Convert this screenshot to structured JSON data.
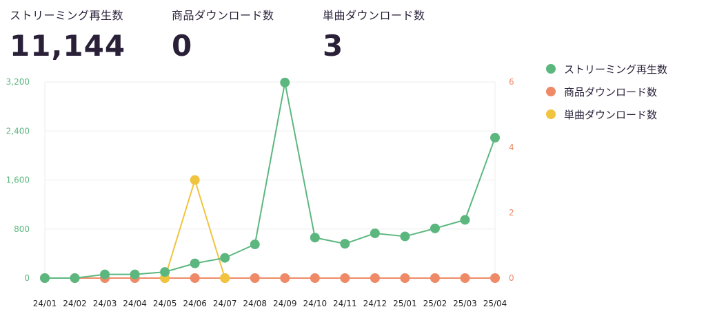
{
  "stats": [
    {
      "label": "ストリーミング再生数",
      "value": "11,144"
    },
    {
      "label": "商品ダウンロード数",
      "value": "0"
    },
    {
      "label": "単曲ダウンロード数",
      "value": "3"
    }
  ],
  "chart_data": {
    "type": "line",
    "categories": [
      "24/01",
      "24/02",
      "24/03",
      "24/04",
      "24/05",
      "24/06",
      "24/07",
      "24/08",
      "24/09",
      "24/10",
      "24/11",
      "24/12",
      "25/01",
      "25/02",
      "25/03",
      "25/04"
    ],
    "left_axis": {
      "ylim": [
        0,
        3200
      ],
      "ticks": [
        0,
        800,
        1600,
        2400,
        3200
      ],
      "tick_labels": [
        "0",
        "800",
        "1,600",
        "2,400",
        "3,200"
      ],
      "color": "#5cb77f"
    },
    "right_axis": {
      "ylim": [
        0,
        6
      ],
      "ticks": [
        0,
        2,
        4,
        6
      ],
      "tick_labels": [
        "0",
        "2",
        "4",
        "6"
      ],
      "color": "#ee8a67"
    },
    "grid": true,
    "legend_position": "right",
    "series": [
      {
        "name": "ストリーミング再生数",
        "axis": "left",
        "color": "#5cb77f",
        "values": [
          0,
          0,
          60,
          60,
          100,
          240,
          330,
          550,
          3190,
          660,
          560,
          730,
          680,
          810,
          950,
          2290
        ]
      },
      {
        "name": "商品ダウンロード数",
        "axis": "right",
        "color": "#ee8a67",
        "values": [
          0,
          0,
          0,
          0,
          0,
          0,
          0,
          0,
          0,
          0,
          0,
          0,
          0,
          0,
          0,
          0
        ]
      },
      {
        "name": "単曲ダウンロード数",
        "axis": "right",
        "color": "#f0c43f",
        "values": [
          null,
          null,
          null,
          null,
          0,
          3,
          0,
          null,
          null,
          null,
          null,
          null,
          null,
          null,
          null,
          null
        ]
      }
    ]
  }
}
